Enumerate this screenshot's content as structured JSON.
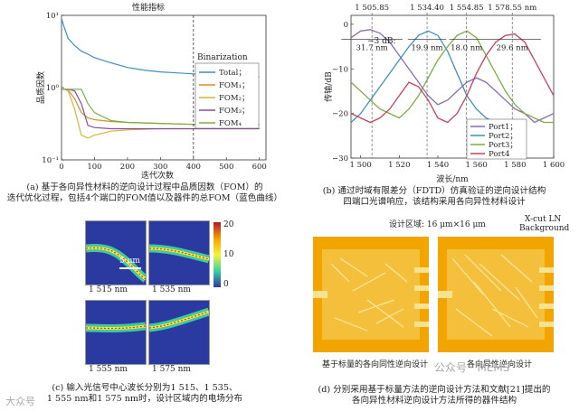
{
  "panel_a": {
    "title": "性能指标",
    "ylabel": "品质因数",
    "xlabel": "迭代次数",
    "binarization": "Binarization",
    "legend": [
      "Total；",
      "FOM₁；",
      "FOM₂；",
      "FOM₃；",
      "FOM₄"
    ],
    "caption_1": "(a)  基于各向异性材料的逆向设计过程中品质因数（FOM）的",
    "caption_2": "迭代优化过程，包括4个端口的FOM值以及器件的总FOM（蓝色曲线）",
    "chart_data": {
      "type": "line",
      "title": "性能指标",
      "xlabel": "迭代次数",
      "ylabel": "品质因数",
      "y_scale": "log",
      "xlim": [
        0,
        620
      ],
      "ylim": [
        0.1,
        10
      ],
      "x_ticks": [
        0,
        100,
        200,
        300,
        400,
        500,
        600
      ],
      "y_ticks": [
        "10⁻¹",
        "10⁰",
        "10¹"
      ],
      "annotation": {
        "text": "Binarization",
        "x": 400
      },
      "series": [
        {
          "name": "Total；",
          "color": "#3b8fc2",
          "x": [
            0,
            10,
            20,
            40,
            60,
            80,
            100,
            150,
            200,
            250,
            300,
            350,
            400,
            450,
            500,
            550,
            600
          ],
          "y": [
            9,
            6.5,
            4.8,
            3.8,
            3.2,
            2.9,
            2.6,
            2.2,
            1.9,
            1.75,
            1.65,
            1.6,
            1.55,
            1.5,
            1.45,
            1.42,
            1.4
          ]
        },
        {
          "name": "FOM₁；",
          "color": "#d98c2b",
          "x": [
            0,
            10,
            20,
            40,
            60,
            80,
            100,
            150,
            200,
            300,
            400,
            500,
            600
          ],
          "y": [
            0.95,
            0.95,
            0.93,
            0.7,
            0.45,
            0.38,
            0.36,
            0.34,
            0.33,
            0.32,
            0.31,
            0.31,
            0.31
          ]
        },
        {
          "name": "FOM₂；",
          "color": "#d8b33a",
          "x": [
            0,
            10,
            20,
            40,
            60,
            80,
            100,
            150,
            200,
            300,
            400,
            500,
            600
          ],
          "y": [
            0.95,
            0.95,
            0.9,
            0.5,
            0.22,
            0.2,
            0.22,
            0.25,
            0.26,
            0.27,
            0.27,
            0.27,
            0.27
          ]
        },
        {
          "name": "FOM₃；",
          "color": "#8a4c9c",
          "x": [
            0,
            10,
            20,
            40,
            60,
            80,
            100,
            150,
            200,
            300,
            400,
            500,
            600
          ],
          "y": [
            0.95,
            0.95,
            0.95,
            0.9,
            0.6,
            0.3,
            0.28,
            0.27,
            0.27,
            0.27,
            0.27,
            0.27,
            0.27
          ]
        },
        {
          "name": "FOM₄",
          "color": "#79ae44",
          "x": [
            0,
            10,
            20,
            40,
            60,
            80,
            100,
            150,
            200,
            300,
            400,
            500,
            600
          ],
          "y": [
            0.95,
            0.95,
            0.95,
            0.95,
            0.95,
            0.6,
            0.45,
            0.35,
            0.33,
            0.32,
            0.31,
            0.3,
            0.3
          ]
        }
      ]
    }
  },
  "panel_b": {
    "ylabel": "传输/dB",
    "xlabel": "波长/nm",
    "peak_labels": [
      "1 505.85",
      "1 534.40",
      "1 554.85",
      "1 578.55 nm"
    ],
    "db_label": "−3 dB:",
    "bandwidths": [
      "31.7 nm",
      "19.9 nm",
      "18.0 nm",
      "29.6 nm"
    ],
    "legend": [
      "Port1；",
      "Port2；",
      "Port3；",
      "Port4"
    ],
    "caption_1": "(b)  通过时域有限差分（FDTD）仿真验证的逆向设计结构",
    "caption_2": "四端口光谱响应，该结构采用各向异性材料设计",
    "chart_data": {
      "type": "line",
      "xlabel": "波长/nm",
      "ylabel": "传输/dB",
      "xlim": [
        1495,
        1600
      ],
      "ylim": [
        -30,
        2
      ],
      "x_ticks": [
        1500,
        1520,
        1540,
        1560,
        1580,
        1600
      ],
      "x_tick_labels": [
        "1 500",
        "1 520",
        "1 540",
        "1 560",
        "1 580",
        "1 600"
      ],
      "y_ticks": [
        -30,
        -20,
        -10,
        0
      ],
      "peaks_nm": [
        1505.85,
        1534.4,
        1554.85,
        1578.55
      ],
      "bandwidth_3dB_nm": [
        31.7,
        19.9,
        18.0,
        29.6
      ],
      "series": [
        {
          "name": "Port1；",
          "color": "#8c6bb1",
          "x": [
            1495,
            1500,
            1505,
            1510,
            1515,
            1520,
            1525,
            1530,
            1535,
            1540,
            1545,
            1550,
            1555,
            1560,
            1565,
            1570,
            1575,
            1580,
            1585,
            1590,
            1595,
            1600
          ],
          "y": [
            -3,
            -1.5,
            -1.2,
            -2,
            -4,
            -7,
            -10,
            -13,
            -16,
            -18,
            -17,
            -15,
            -13,
            -12,
            -13,
            -15,
            -17,
            -19,
            -20,
            -22,
            -21,
            -20
          ]
        },
        {
          "name": "Port2；",
          "color": "#3b8fc2",
          "x": [
            1495,
            1500,
            1505,
            1510,
            1515,
            1520,
            1525,
            1530,
            1535,
            1540,
            1545,
            1550,
            1555,
            1560,
            1565,
            1570,
            1575
          ],
          "y": [
            -22,
            -20,
            -17,
            -14,
            -11,
            -8,
            -5,
            -2.5,
            -1.5,
            -2.5,
            -6,
            -11,
            -16,
            -19,
            -21,
            -22,
            -23
          ]
        },
        {
          "name": "Port3；",
          "color": "#79ae44",
          "x": [
            1495,
            1500,
            1505,
            1510,
            1515,
            1520,
            1525,
            1530,
            1535,
            1540,
            1545,
            1550,
            1555,
            1560,
            1565,
            1570,
            1575,
            1580,
            1585,
            1590,
            1595,
            1600
          ],
          "y": [
            -13,
            -15,
            -17,
            -19,
            -20,
            -21,
            -19,
            -16,
            -12,
            -8,
            -5,
            -2.5,
            -1.5,
            -3,
            -7,
            -11,
            -15,
            -18,
            -20,
            -21,
            -22,
            -22
          ]
        },
        {
          "name": "Port4",
          "color": "#c8415a",
          "x": [
            1495,
            1500,
            1505,
            1510,
            1515,
            1520,
            1525,
            1530,
            1535,
            1540,
            1545,
            1550,
            1555,
            1560,
            1565,
            1570,
            1575,
            1580,
            1585,
            1590,
            1595,
            1600
          ],
          "y": [
            -20,
            -21,
            -22,
            -21,
            -19,
            -16,
            -13,
            -14,
            -17,
            -21,
            -22,
            -20,
            -16,
            -11,
            -7,
            -4,
            -2.5,
            -2.2,
            -4,
            -8,
            -12,
            -16
          ]
        }
      ]
    }
  },
  "panel_c": {
    "scale_bar": "5 μm",
    "labels": [
      "1 515 nm",
      "1 535 nm",
      "1 555 nm",
      "1 575 nm"
    ],
    "colorbar_ticks": [
      "20",
      "10",
      "0"
    ],
    "caption_1": "(c)  输入光信号中心波长分别为1 515、1 535、",
    "caption_2": "1 555 nm和1 575 nm时，设计区域内的电场分布"
  },
  "panel_d": {
    "design_area": "设计区域: 16 μm×16 μm",
    "material": "X-cut LN",
    "background": "Background",
    "sub_left": "基于标量的各向同性逆向设计",
    "sub_right": "各向异性逆向设计",
    "caption_1": "(d)  分别采用基于标量方法的逆向设计方法和文献[21]提出的",
    "caption_2": "各向异性材料逆向设计方法所得的器件结构"
  },
  "watermark": {
    "left": "大众号",
    "right": "公众号 · MEMS"
  }
}
